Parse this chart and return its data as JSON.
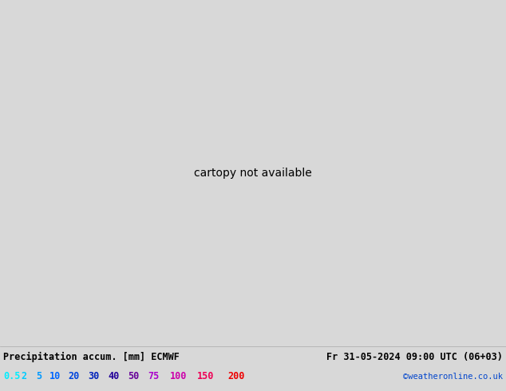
{
  "title_left": "Precipitation accum. [mm] ECMWF",
  "title_right": "Fr 31-05-2024 09:00 UTC (06+03)",
  "credit": "©weatheronline.co.uk",
  "legend_values": [
    "0.5",
    "2",
    "5",
    "10",
    "20",
    "30",
    "40",
    "50",
    "75",
    "100",
    "150",
    "200"
  ],
  "legend_label_colors": [
    "#00eeff",
    "#00ccff",
    "#0099ff",
    "#0066ff",
    "#0044dd",
    "#0022bb",
    "#220099",
    "#660099",
    "#aa00cc",
    "#cc00aa",
    "#ee0055",
    "#ee0000"
  ],
  "background_color": "#d8d8d8",
  "land_color": "#c8e0a0",
  "ocean_color": "#d8e8f0",
  "coastline_color": "#888888",
  "isobar_red": "#dd0000",
  "isobar_blue": "#0000cc",
  "figsize": [
    6.34,
    4.9
  ],
  "dpi": 100,
  "extent": [
    -120,
    -55,
    0,
    37
  ],
  "font_family": "monospace"
}
